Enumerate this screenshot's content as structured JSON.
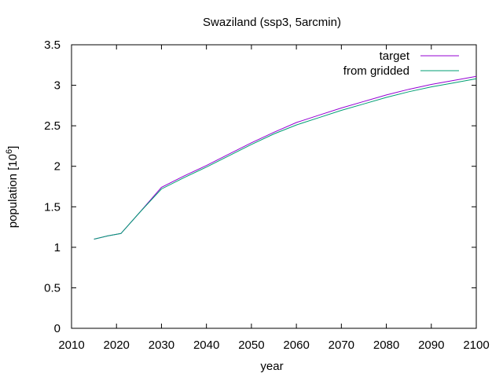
{
  "chart_data": {
    "type": "line",
    "title": "Swaziland (ssp3, 5arcmin)",
    "xlabel": "year",
    "ylabel_base": "population [10",
    "ylabel_exp": "6",
    "ylabel_close": "]",
    "xlim": [
      2010,
      2100
    ],
    "ylim": [
      0,
      3.5
    ],
    "x_ticks": [
      2010,
      2020,
      2030,
      2040,
      2050,
      2060,
      2070,
      2080,
      2090,
      2100
    ],
    "y_ticks": [
      0,
      0.5,
      1,
      1.5,
      2,
      2.5,
      3,
      3.5
    ],
    "grid": false,
    "legend_position": "top-right",
    "series": [
      {
        "name": "target",
        "color": "#9400d3",
        "x": [
          2015,
          2018,
          2021,
          2025,
          2030,
          2035,
          2040,
          2045,
          2050,
          2055,
          2060,
          2065,
          2070,
          2075,
          2080,
          2085,
          2090,
          2095,
          2100
        ],
        "y": [
          1.1,
          1.14,
          1.17,
          1.42,
          1.74,
          1.88,
          2.01,
          2.15,
          2.29,
          2.42,
          2.54,
          2.63,
          2.72,
          2.8,
          2.88,
          2.95,
          3.01,
          3.06,
          3.11
        ]
      },
      {
        "name": "from gridded",
        "color": "#009e73",
        "x": [
          2015,
          2018,
          2021,
          2025,
          2030,
          2035,
          2040,
          2045,
          2050,
          2055,
          2060,
          2065,
          2070,
          2075,
          2080,
          2085,
          2090,
          2095,
          2100
        ],
        "y": [
          1.1,
          1.14,
          1.17,
          1.42,
          1.72,
          1.86,
          1.99,
          2.13,
          2.27,
          2.4,
          2.51,
          2.6,
          2.69,
          2.77,
          2.85,
          2.92,
          2.98,
          3.03,
          3.08
        ]
      }
    ]
  }
}
